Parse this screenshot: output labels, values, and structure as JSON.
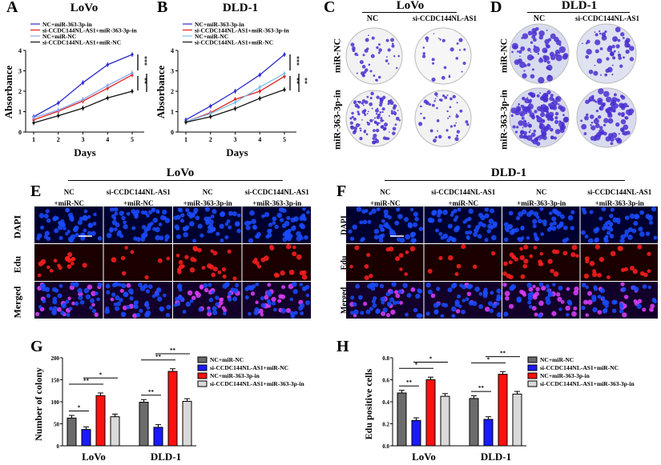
{
  "panels": {
    "A": {
      "letter": "A",
      "title": "LoVo"
    },
    "B": {
      "letter": "B",
      "title": "DLD-1"
    },
    "C": {
      "letter": "C",
      "title": "LoVo",
      "cols": [
        "NC",
        "si-CCDC144NL-AS1"
      ],
      "rows": [
        "miR-NC",
        "miR-363-3p-in"
      ]
    },
    "D": {
      "letter": "D",
      "title": "DLD-1",
      "cols": [
        "NC",
        "si-CCDC144NL-AS1"
      ],
      "rows": [
        "miR-NC",
        "miR-363-3p-in"
      ]
    },
    "E": {
      "letter": "E",
      "title": "LoVo",
      "cols": [
        [
          "NC",
          "+miR-NC"
        ],
        [
          "si-CCDC144NL-AS1",
          "+miR-NC"
        ],
        [
          "NC",
          "+miR-363-3p-in"
        ],
        [
          "si-CCDC144NL-AS1",
          "+miR-363-3p-in"
        ]
      ],
      "rows": [
        "DAPI",
        "Edu",
        "Merged"
      ]
    },
    "F": {
      "letter": "F",
      "title": "DLD-1",
      "cols": [
        [
          "NC",
          "+miR-NC"
        ],
        [
          "si-CCDC144NL-AS1",
          "+miR-NC"
        ],
        [
          "NC",
          "+miR-363-3p-in"
        ],
        [
          "si-CCDC144NL-AS1",
          "+miR-363-3p-in"
        ]
      ],
      "rows": [
        "DAPI",
        "Edu",
        "Merged"
      ]
    },
    "G": {
      "letter": "G"
    },
    "H": {
      "letter": "H"
    }
  },
  "colors": {
    "dapi": "#1a4cff",
    "edu": "#ff2020",
    "merged": "#e040ff",
    "crystal_violet": "#4a2fd0"
  },
  "chart_data": [
    {
      "panel": "A",
      "type": "line",
      "title": "LoVo",
      "xlabel": "Days",
      "ylabel": "Absorbance",
      "x": [
        1,
        2,
        3,
        4,
        5
      ],
      "xlim": [
        1,
        5
      ],
      "ylim": [
        0,
        4
      ],
      "yticks": [
        0,
        1,
        2,
        3,
        4
      ],
      "series": [
        {
          "name": "NC+miR-363-3p-in",
          "color": "#2a2ad0",
          "values": [
            0.75,
            1.42,
            2.42,
            3.3,
            3.8
          ]
        },
        {
          "name": "si-CCDC144NL-AS1+miR-363-3p-in",
          "color": "#e02020",
          "values": [
            0.6,
            1.02,
            1.52,
            2.15,
            2.8
          ]
        },
        {
          "name": "NC+miR-NC",
          "color": "#8aa8f0",
          "values": [
            0.7,
            1.08,
            1.6,
            2.28,
            2.9
          ]
        },
        {
          "name": "si-CCDC144NL-AS1+miR-NC",
          "color": "#111111",
          "values": [
            0.45,
            0.8,
            1.17,
            1.67,
            2.0
          ]
        }
      ],
      "annotations": [
        "***",
        "**",
        "**"
      ]
    },
    {
      "panel": "B",
      "type": "line",
      "title": "DLD-1",
      "xlabel": "Days",
      "ylabel": "Absorbance",
      "x": [
        1,
        2,
        3,
        4,
        5
      ],
      "xlim": [
        1,
        5
      ],
      "ylim": [
        0,
        4
      ],
      "yticks": [
        0,
        1,
        2,
        3,
        4
      ],
      "series": [
        {
          "name": "NC+miR-363-3p-in",
          "color": "#2a2ad0",
          "values": [
            0.6,
            1.27,
            2.0,
            2.8,
            3.8
          ]
        },
        {
          "name": "si-CCDC144NL-AS1+miR-363-3p-in",
          "color": "#e02020",
          "values": [
            0.5,
            0.95,
            1.6,
            2.0,
            2.73
          ]
        },
        {
          "name": "NC+miR-NC",
          "color": "#7ac0f0",
          "values": [
            0.5,
            0.9,
            1.45,
            2.2,
            2.87
          ]
        },
        {
          "name": "si-CCDC144NL-AS1+miR-NC",
          "color": "#111111",
          "values": [
            0.48,
            0.75,
            1.15,
            1.65,
            2.08
          ]
        }
      ],
      "annotations": [
        "***",
        "**",
        "**"
      ]
    },
    {
      "panel": "G",
      "type": "bar",
      "ylabel": "Number of colony",
      "categories": [
        "LoVo",
        "DLD-1"
      ],
      "ylim": [
        0,
        200
      ],
      "yticks": [
        0,
        50,
        100,
        150,
        200
      ],
      "legend": "right",
      "series": [
        {
          "name": "NC+miR-NC",
          "color": "#6b6b6b",
          "values": [
            63,
            99
          ]
        },
        {
          "name": "si-CCDC144NL-AS1+miR-NC",
          "color": "#1a1aff",
          "values": [
            37,
            42
          ]
        },
        {
          "name": "NC+miR-363-3p-in",
          "color": "#ff1010",
          "values": [
            114,
            169
          ]
        },
        {
          "name": "si-CCDC144NL-AS1+miR-363-3p-in",
          "color": "#d9d9d9",
          "values": [
            66,
            101
          ]
        }
      ],
      "significance": [
        [
          "*",
          "**",
          "*"
        ],
        [
          "**",
          "**",
          "**"
        ]
      ]
    },
    {
      "panel": "H",
      "type": "bar",
      "ylabel": "Edu positive cells",
      "categories": [
        "LoVo",
        "DLD-1"
      ],
      "ylim": [
        0,
        0.8
      ],
      "yticks": [
        "0.0",
        "0.2",
        "0.4",
        "0.6",
        "0.8"
      ],
      "legend": "right",
      "series": [
        {
          "name": "NC+miR-NC",
          "color": "#6b6b6b",
          "values": [
            0.48,
            0.43
          ]
        },
        {
          "name": "si-CCDC144NL-AS1+miR-NC",
          "color": "#1a1aff",
          "values": [
            0.23,
            0.24
          ]
        },
        {
          "name": "NC+miR-363-3p-in",
          "color": "#ff1010",
          "values": [
            0.6,
            0.65
          ]
        },
        {
          "name": "si-CCDC144NL-AS1+miR-363-3p-in",
          "color": "#d9d9d9",
          "values": [
            0.45,
            0.47
          ]
        }
      ],
      "significance": [
        [
          "**",
          "*",
          "*"
        ],
        [
          "**",
          "*",
          "**"
        ]
      ]
    }
  ]
}
